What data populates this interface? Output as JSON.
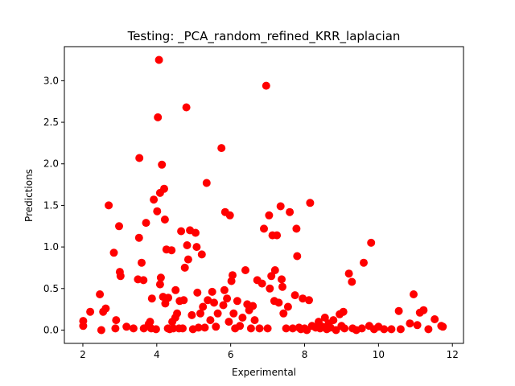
{
  "chart_data": {
    "type": "scatter",
    "title": "Testing: _PCA_random_refined_KRR_laplacian",
    "xlabel": "Experimental",
    "ylabel": "Predictions",
    "xlim": [
      1.5,
      12.3
    ],
    "ylim": [
      -0.16,
      3.41
    ],
    "xticks": [
      2,
      4,
      6,
      8,
      10,
      12
    ],
    "yticks": [
      0.0,
      0.5,
      1.0,
      1.5,
      2.0,
      2.5,
      3.0
    ],
    "xtick_labels": [
      "2",
      "4",
      "6",
      "8",
      "10",
      "12"
    ],
    "ytick_labels": [
      "0.0",
      "0.5",
      "1.0",
      "1.5",
      "2.0",
      "2.5",
      "3.0"
    ],
    "grid": false,
    "marker_color": "#ff0000",
    "series": [
      {
        "points": [
          [
            2.01,
            0.11
          ],
          [
            2.01,
            0.05
          ],
          [
            2.2,
            0.22
          ],
          [
            2.46,
            0.43
          ],
          [
            2.5,
            0.0
          ],
          [
            2.55,
            0.22
          ],
          [
            2.62,
            0.26
          ],
          [
            2.7,
            1.5
          ],
          [
            2.84,
            0.93
          ],
          [
            2.88,
            0.02
          ],
          [
            2.9,
            0.12
          ],
          [
            2.98,
            1.25
          ],
          [
            3.0,
            0.7
          ],
          [
            3.02,
            0.65
          ],
          [
            3.18,
            0.04
          ],
          [
            3.37,
            0.02
          ],
          [
            3.49,
            0.61
          ],
          [
            3.52,
            1.11
          ],
          [
            3.53,
            2.07
          ],
          [
            3.59,
            0.81
          ],
          [
            3.64,
            0.6
          ],
          [
            3.65,
            0.02
          ],
          [
            3.71,
            1.29
          ],
          [
            3.78,
            0.07
          ],
          [
            3.82,
            0.1
          ],
          [
            3.85,
            0.02
          ],
          [
            3.87,
            0.38
          ],
          [
            3.92,
            1.57
          ],
          [
            3.98,
            0.01
          ],
          [
            4.01,
            1.43
          ],
          [
            4.03,
            2.56
          ],
          [
            4.06,
            3.25
          ],
          [
            4.09,
            0.55
          ],
          [
            4.09,
            1.65
          ],
          [
            4.11,
            0.63
          ],
          [
            4.14,
            1.99
          ],
          [
            4.17,
            0.4
          ],
          [
            4.2,
            1.7
          ],
          [
            4.22,
            1.33
          ],
          [
            4.23,
            0.32
          ],
          [
            4.26,
            0.97
          ],
          [
            4.3,
            0.02
          ],
          [
            4.31,
            0.39
          ],
          [
            4.35,
            0.01
          ],
          [
            4.4,
            0.96
          ],
          [
            4.42,
            0.1
          ],
          [
            4.45,
            0.02
          ],
          [
            4.5,
            0.15
          ],
          [
            4.51,
            0.48
          ],
          [
            4.55,
            0.2
          ],
          [
            4.6,
            0.02
          ],
          [
            4.62,
            0.35
          ],
          [
            4.66,
            1.19
          ],
          [
            4.7,
            0.02
          ],
          [
            4.73,
            0.36
          ],
          [
            4.76,
            0.75
          ],
          [
            4.8,
            2.68
          ],
          [
            4.82,
            1.02
          ],
          [
            4.85,
            0.85
          ],
          [
            4.9,
            1.2
          ],
          [
            4.95,
            0.18
          ],
          [
            4.98,
            0.01
          ],
          [
            5.05,
            1.17
          ],
          [
            5.08,
            1.0
          ],
          [
            5.1,
            0.45
          ],
          [
            5.13,
            0.03
          ],
          [
            5.18,
            0.2
          ],
          [
            5.22,
            0.91
          ],
          [
            5.25,
            0.28
          ],
          [
            5.3,
            0.03
          ],
          [
            5.35,
            1.77
          ],
          [
            5.38,
            0.36
          ],
          [
            5.45,
            0.12
          ],
          [
            5.5,
            0.46
          ],
          [
            5.55,
            0.33
          ],
          [
            5.6,
            0.04
          ],
          [
            5.65,
            0.2
          ],
          [
            5.75,
            2.19
          ],
          [
            5.8,
            0.3
          ],
          [
            5.83,
            0.48
          ],
          [
            5.85,
            1.42
          ],
          [
            5.9,
            0.38
          ],
          [
            5.95,
            0.1
          ],
          [
            5.98,
            1.38
          ],
          [
            6.02,
            0.59
          ],
          [
            6.05,
            0.66
          ],
          [
            6.08,
            0.2
          ],
          [
            6.12,
            0.02
          ],
          [
            6.18,
            0.35
          ],
          [
            6.25,
            0.05
          ],
          [
            6.32,
            0.15
          ],
          [
            6.4,
            0.72
          ],
          [
            6.45,
            0.31
          ],
          [
            6.5,
            0.24
          ],
          [
            6.55,
            0.02
          ],
          [
            6.6,
            0.29
          ],
          [
            6.65,
            0.12
          ],
          [
            6.72,
            0.6
          ],
          [
            6.78,
            0.02
          ],
          [
            6.85,
            0.56
          ],
          [
            6.9,
            1.22
          ],
          [
            6.96,
            2.94
          ],
          [
            7.0,
            0.02
          ],
          [
            7.04,
            1.38
          ],
          [
            7.06,
            0.5
          ],
          [
            7.1,
            0.65
          ],
          [
            7.13,
            1.14
          ],
          [
            7.18,
            0.35
          ],
          [
            7.2,
            0.72
          ],
          [
            7.25,
            1.14
          ],
          [
            7.3,
            0.33
          ],
          [
            7.35,
            1.49
          ],
          [
            7.38,
            0.61
          ],
          [
            7.4,
            0.52
          ],
          [
            7.43,
            0.2
          ],
          [
            7.5,
            0.02
          ],
          [
            7.55,
            0.28
          ],
          [
            7.6,
            1.42
          ],
          [
            7.68,
            0.02
          ],
          [
            7.74,
            0.42
          ],
          [
            7.78,
            1.22
          ],
          [
            7.8,
            0.89
          ],
          [
            7.85,
            0.03
          ],
          [
            7.9,
            0.01
          ],
          [
            7.95,
            0.38
          ],
          [
            8.0,
            0.02
          ],
          [
            8.06,
            0.0
          ],
          [
            8.12,
            0.36
          ],
          [
            8.15,
            1.53
          ],
          [
            8.2,
            0.05
          ],
          [
            8.3,
            0.03
          ],
          [
            8.38,
            0.1
          ],
          [
            8.42,
            0.02
          ],
          [
            8.48,
            0.04
          ],
          [
            8.55,
            0.15
          ],
          [
            8.6,
            0.01
          ],
          [
            8.65,
            0.08
          ],
          [
            8.7,
            0.03
          ],
          [
            8.78,
            0.12
          ],
          [
            8.85,
            0.0
          ],
          [
            8.95,
            0.19
          ],
          [
            9.0,
            0.05
          ],
          [
            9.05,
            0.22
          ],
          [
            9.08,
            0.02
          ],
          [
            9.2,
            0.68
          ],
          [
            9.28,
            0.58
          ],
          [
            9.3,
            0.02
          ],
          [
            9.4,
            0.0
          ],
          [
            9.55,
            0.02
          ],
          [
            9.6,
            0.81
          ],
          [
            9.75,
            0.05
          ],
          [
            9.8,
            1.05
          ],
          [
            9.88,
            0.01
          ],
          [
            10.0,
            0.04
          ],
          [
            10.15,
            0.01
          ],
          [
            10.35,
            0.01
          ],
          [
            10.55,
            0.23
          ],
          [
            10.6,
            0.01
          ],
          [
            10.85,
            0.08
          ],
          [
            10.95,
            0.43
          ],
          [
            11.05,
            0.06
          ],
          [
            11.12,
            0.21
          ],
          [
            11.22,
            0.24
          ],
          [
            11.35,
            0.01
          ],
          [
            11.52,
            0.13
          ],
          [
            11.7,
            0.05
          ],
          [
            11.74,
            0.04
          ]
        ]
      }
    ]
  }
}
